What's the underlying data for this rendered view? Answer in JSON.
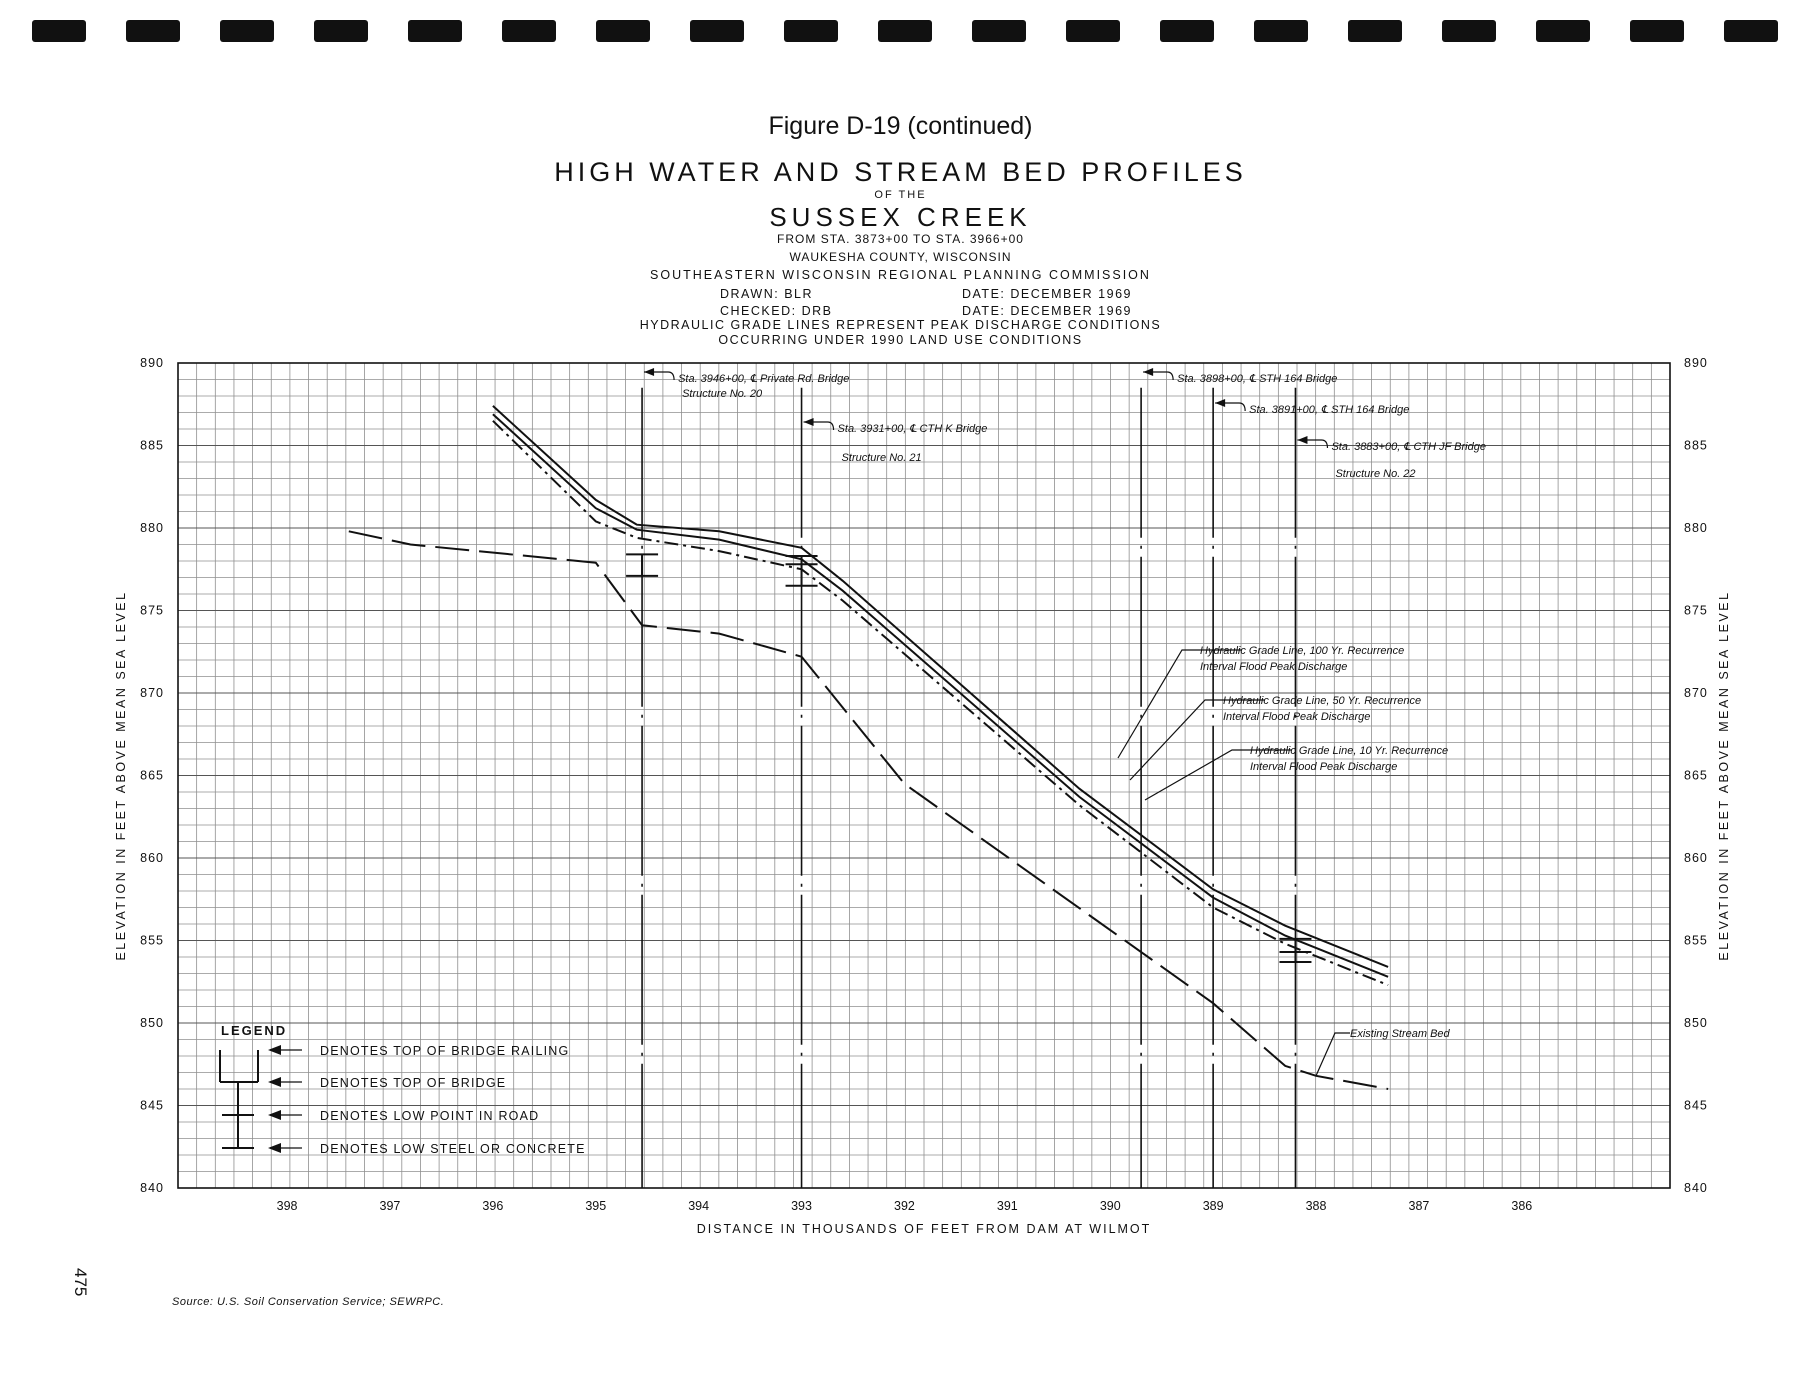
{
  "header": {
    "figure_title": "Figure D-19 (continued)",
    "title": "HIGH WATER AND STREAM BED PROFILES",
    "of_the": "OF THE",
    "creek": "SUSSEX CREEK",
    "station_range": "FROM STA. 3873+00 TO STA. 3966+00",
    "county": "WAUKESHA COUNTY, WISCONSIN",
    "agency": "SOUTHEASTERN WISCONSIN REGIONAL PLANNING COMMISSION",
    "drawn": "DRAWN: BLR",
    "drawn_date": "DATE: DECEMBER 1969",
    "checked": "CHECKED: DRB",
    "checked_date": "DATE: DECEMBER 1969",
    "note_line1": "HYDRAULIC GRADE LINES REPRESENT PEAK DISCHARGE CONDITIONS",
    "note_line2": "OCCURRING UNDER 1990 LAND USE CONDITIONS"
  },
  "page_number": "475",
  "source": "Source: U.S. Soil Conservation Service; SEWRPC.",
  "colors": {
    "ink": "#111111",
    "grid": "#8f8f8f",
    "grid_major": "#555555",
    "paper": "#ffffff"
  },
  "chart_data": {
    "type": "line",
    "xlabel": "DISTANCE IN THOUSANDS OF FEET FROM DAM AT WILMOT",
    "ylabel": "ELEVATION IN FEET ABOVE MEAN SEA LEVEL",
    "ylabel_right": "ELEVATION IN FEET ABOVE MEAN SEA LEVEL",
    "x_reversed": true,
    "xlim": [
      399.06,
      384.56
    ],
    "ylim": [
      840,
      890
    ],
    "x_ticks": [
      "398",
      "397",
      "396",
      "395",
      "394",
      "393",
      "392",
      "391",
      "390",
      "389",
      "388",
      "387",
      "386"
    ],
    "y_ticks": [
      "890",
      "885",
      "880",
      "875",
      "870",
      "865",
      "860",
      "855",
      "850",
      "845",
      "840"
    ],
    "grid": true,
    "series": [
      {
        "name": "Hydraulic Grade Line, 100 Yr. Recurrence Interval Flood Peak Discharge",
        "x": [
          396.0,
          395.0,
          394.6,
          393.8,
          393.0,
          392.6,
          390.3,
          389.0,
          388.3,
          387.3
        ],
        "y": [
          887.4,
          881.7,
          880.2,
          879.8,
          878.8,
          876.8,
          864.2,
          858.1,
          855.9,
          853.4
        ]
      },
      {
        "name": "Hydraulic Grade Line, 50 Yr. Recurrence Interval Flood Peak Discharge",
        "x": [
          396.0,
          395.0,
          394.6,
          393.8,
          393.0,
          392.6,
          390.3,
          389.0,
          388.3,
          387.3
        ],
        "y": [
          886.9,
          881.2,
          879.9,
          879.3,
          878.1,
          876.2,
          863.7,
          857.6,
          855.3,
          852.8
        ]
      },
      {
        "name": "Hydraulic Grade Line, 10 Yr. Recurrence Interval Flood Peak Discharge",
        "x": [
          396.0,
          395.0,
          394.6,
          393.8,
          393.0,
          392.6,
          390.3,
          389.0,
          388.3,
          387.3
        ],
        "y": [
          886.5,
          880.4,
          879.4,
          878.6,
          877.5,
          875.6,
          863.2,
          857.0,
          854.8,
          852.3
        ]
      },
      {
        "name": "Existing Stream Bed",
        "x": [
          397.4,
          396.8,
          395.0,
          394.55,
          393.8,
          393.0,
          392.0,
          389.0,
          388.3,
          388.0,
          387.3
        ],
        "y": [
          879.8,
          879.0,
          877.9,
          874.1,
          873.6,
          872.2,
          864.5,
          851.2,
          847.4,
          846.8,
          846.0
        ]
      }
    ],
    "stations": [
      {
        "label": "Sta. 3946+00, ℄ Private Rd. Bridge",
        "structure": "Structure No. 20",
        "x": 394.55,
        "symbols": {
          "railing": 878.4,
          "top_of_bridge": 877.1
        }
      },
      {
        "label": "Sta. 3931+00, ℄ CTH K Bridge",
        "structure": "Structure No. 21",
        "x": 393.0,
        "symbols": {
          "railing": 878.3,
          "top_of_bridge": 877.8,
          "low_steel": 876.5
        }
      },
      {
        "label": "Sta. 3898+00, ℄ STH 164 Bridge",
        "structure": "",
        "x": 389.7,
        "symbols": {}
      },
      {
        "label": "Sta. 3891+00, ℄ STH 164 Bridge",
        "structure": "",
        "x": 389.0,
        "symbols": {}
      },
      {
        "label": "Sta. 3883+00, ℄ CTH JF Bridge",
        "structure": "Structure No. 22",
        "x": 388.2,
        "symbols": {
          "railing": 855.1,
          "top_of_bridge": 854.3,
          "low_steel": 853.7
        }
      }
    ],
    "legend": {
      "title": "LEGEND",
      "entries": [
        "DENOTES TOP OF BRIDGE RAILING",
        "DENOTES TOP OF BRIDGE",
        "DENOTES LOW POINT IN ROAD",
        "DENOTES LOW STEEL OR CONCRETE"
      ]
    }
  }
}
